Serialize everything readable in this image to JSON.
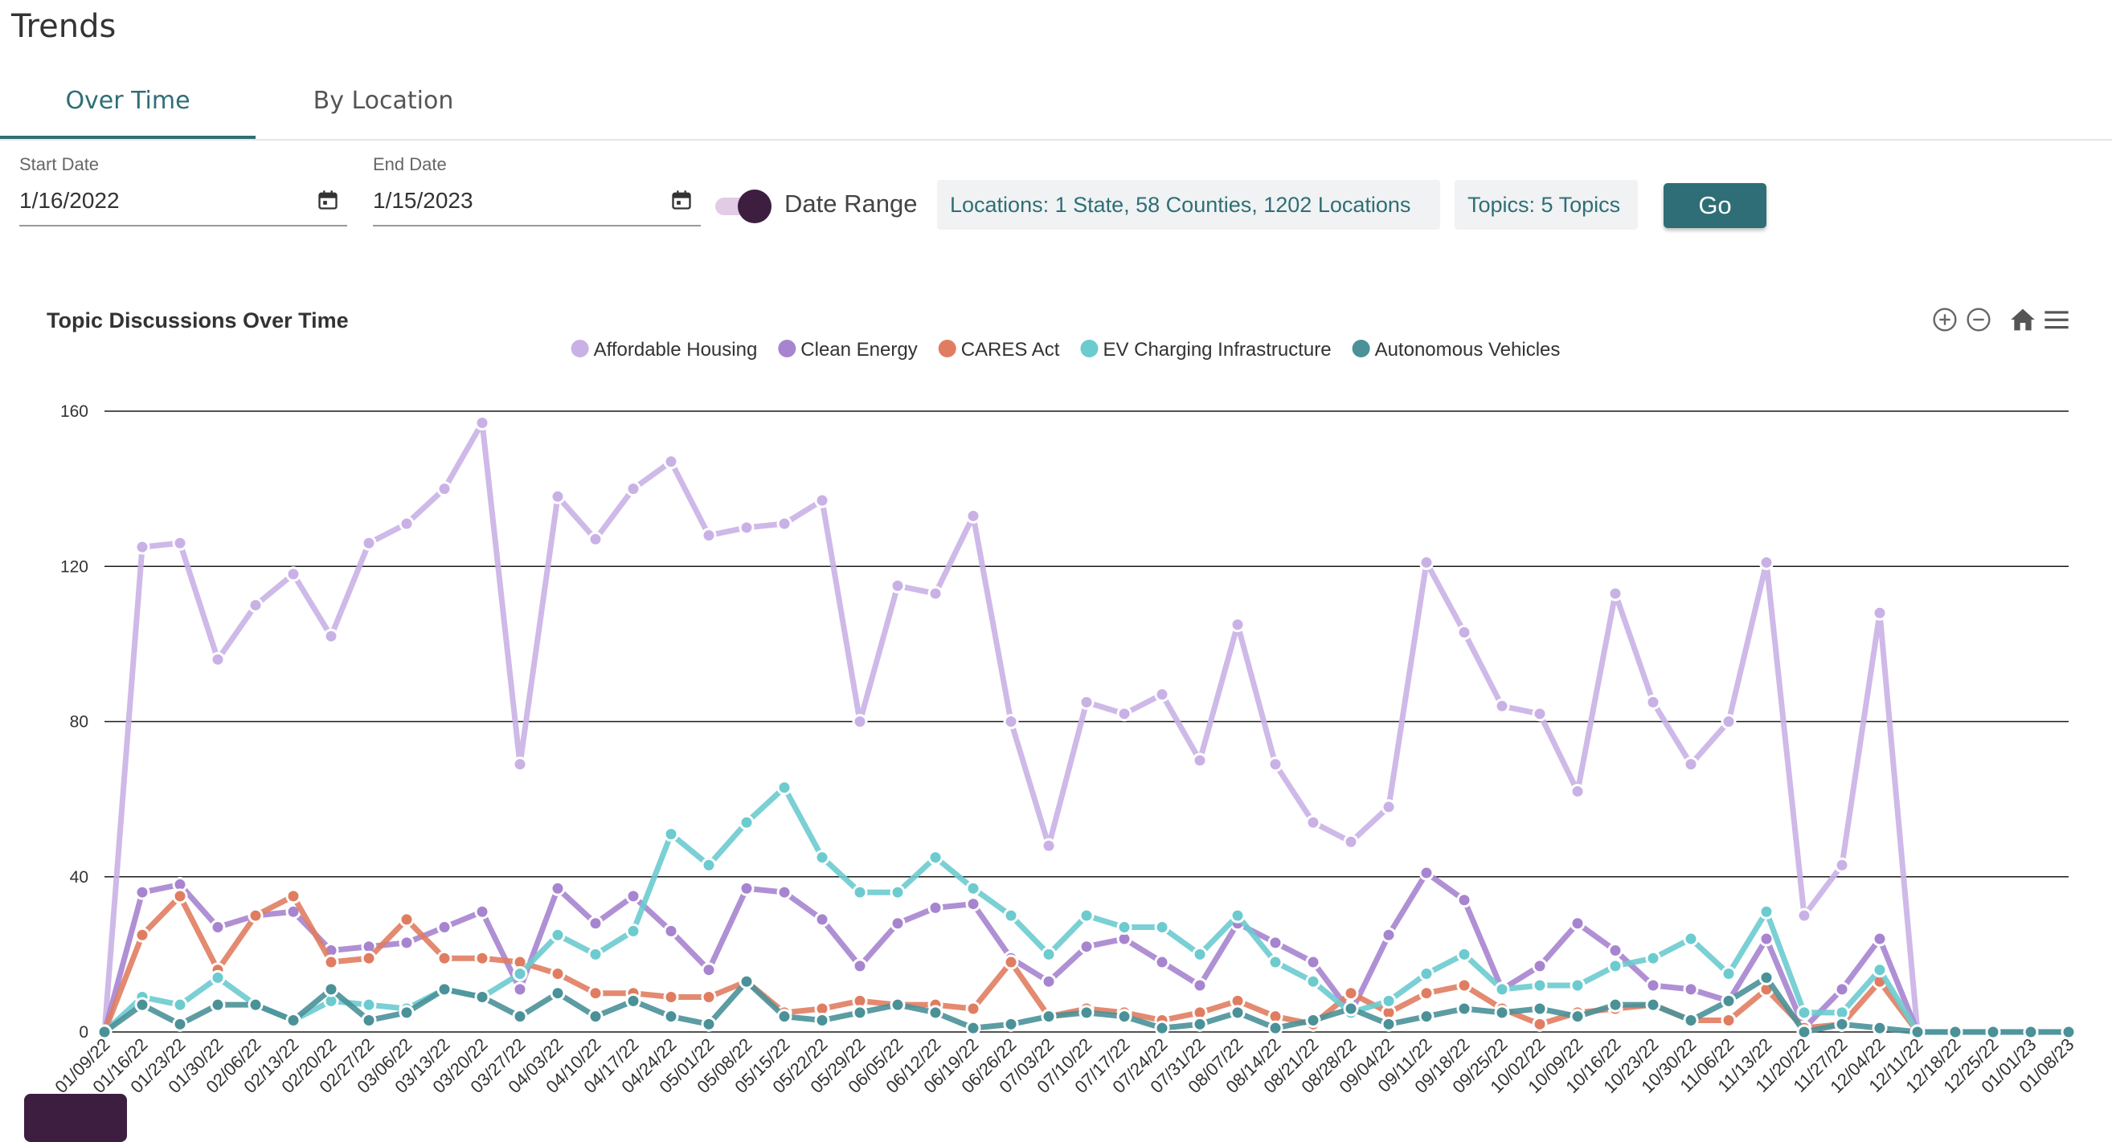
{
  "app": {
    "title": "Trends"
  },
  "tabs": [
    {
      "label": "Over Time",
      "active": true
    },
    {
      "label": "By Location",
      "active": false
    }
  ],
  "filters": {
    "start_date": {
      "label": "Start Date",
      "value": "1/16/2022"
    },
    "end_date": {
      "label": "End Date",
      "value": "1/15/2023"
    },
    "date_range_toggle": {
      "label": "Date Range",
      "on": true
    },
    "locations_chip": "Locations: 1 State, 58 Counties, 1202 Locations",
    "topics_chip": "Topics: 5 Topics",
    "go_label": "Go"
  },
  "colors": {
    "accent": "#2f6e76",
    "toggle_knob": "#3d1e41",
    "toggle_track": "#e2cbe5"
  },
  "toolbar_icons": [
    "zoom-in-icon",
    "zoom-out-icon",
    "home-icon",
    "menu-icon"
  ],
  "chart_data": {
    "type": "line",
    "title": "Topic Discussions Over Time",
    "legend_position": "top-center",
    "grid": true,
    "ylim": [
      0,
      160
    ],
    "yticks": [
      0,
      40,
      80,
      120,
      160
    ],
    "x": [
      "01/09/22",
      "01/16/22",
      "01/23/22",
      "01/30/22",
      "02/06/22",
      "02/13/22",
      "02/20/22",
      "02/27/22",
      "03/06/22",
      "03/13/22",
      "03/20/22",
      "03/27/22",
      "04/03/22",
      "04/10/22",
      "04/17/22",
      "04/24/22",
      "05/01/22",
      "05/08/22",
      "05/15/22",
      "05/22/22",
      "05/29/22",
      "06/05/22",
      "06/12/22",
      "06/19/22",
      "06/26/22",
      "07/03/22",
      "07/10/22",
      "07/17/22",
      "07/24/22",
      "07/31/22",
      "08/07/22",
      "08/14/22",
      "08/21/22",
      "08/28/22",
      "09/04/22",
      "09/11/22",
      "09/18/22",
      "09/25/22",
      "10/02/22",
      "10/09/22",
      "10/16/22",
      "10/23/22",
      "10/30/22",
      "11/06/22",
      "11/13/22",
      "11/20/22",
      "11/27/22",
      "12/04/22",
      "12/11/22",
      "12/18/22",
      "12/25/22",
      "01/01/23",
      "01/08/23"
    ],
    "series": [
      {
        "name": "Affordable Housing",
        "color": "#c9b1e6",
        "values": [
          0,
          125,
          126,
          96,
          110,
          118,
          102,
          126,
          131,
          140,
          157,
          69,
          138,
          127,
          140,
          147,
          128,
          130,
          131,
          137,
          80,
          115,
          113,
          133,
          80,
          48,
          85,
          82,
          87,
          70,
          105,
          69,
          54,
          49,
          58,
          121,
          103,
          84,
          82,
          62,
          113,
          85,
          69,
          80,
          121,
          30,
          43,
          108,
          0,
          0,
          0,
          0,
          0
        ]
      },
      {
        "name": "Clean Energy",
        "color": "#a784cf",
        "values": [
          0,
          36,
          38,
          27,
          30,
          31,
          21,
          22,
          23,
          27,
          31,
          11,
          37,
          28,
          35,
          26,
          16,
          37,
          36,
          29,
          17,
          28,
          32,
          33,
          19,
          13,
          22,
          24,
          18,
          12,
          28,
          23,
          18,
          5,
          25,
          41,
          34,
          11,
          17,
          28,
          21,
          12,
          11,
          8,
          24,
          1,
          11,
          24,
          0,
          0,
          0,
          0,
          0
        ]
      },
      {
        "name": "CARES Act",
        "color": "#e07d60",
        "values": [
          0,
          25,
          35,
          16,
          30,
          35,
          18,
          19,
          29,
          19,
          19,
          18,
          15,
          10,
          10,
          9,
          9,
          13,
          5,
          6,
          8,
          7,
          7,
          6,
          18,
          4,
          6,
          5,
          3,
          5,
          8,
          4,
          2,
          10,
          5,
          10,
          12,
          6,
          2,
          5,
          6,
          7,
          3,
          3,
          11,
          1,
          2,
          13,
          0,
          0,
          0,
          0,
          0
        ]
      },
      {
        "name": "EV Charging Infrastructure",
        "color": "#6ccbcf",
        "values": [
          0,
          9,
          7,
          14,
          7,
          3,
          8,
          7,
          6,
          11,
          9,
          15,
          25,
          20,
          26,
          51,
          43,
          54,
          63,
          45,
          36,
          36,
          45,
          37,
          30,
          20,
          30,
          27,
          27,
          20,
          30,
          18,
          13,
          5,
          8,
          15,
          20,
          11,
          12,
          12,
          17,
          19,
          24,
          15,
          31,
          5,
          5,
          16,
          0,
          0,
          0,
          0,
          0
        ]
      },
      {
        "name": "Autonomous Vehicles",
        "color": "#4a9198",
        "values": [
          0,
          7,
          2,
          7,
          7,
          3,
          11,
          3,
          5,
          11,
          9,
          4,
          10,
          4,
          8,
          4,
          2,
          13,
          4,
          3,
          5,
          7,
          5,
          1,
          2,
          4,
          5,
          4,
          1,
          2,
          5,
          1,
          3,
          6,
          2,
          4,
          6,
          5,
          6,
          4,
          7,
          7,
          3,
          8,
          14,
          0,
          2,
          1,
          0,
          0,
          0,
          0,
          0
        ]
      }
    ]
  }
}
